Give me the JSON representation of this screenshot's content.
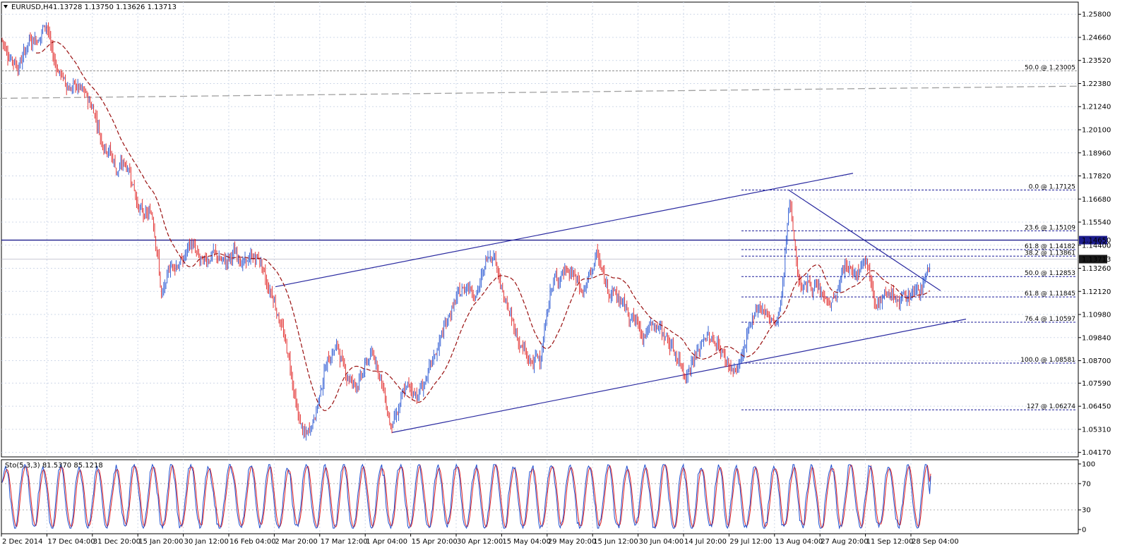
{
  "header": {
    "symbol": "EURUSD,H4",
    "ohlc": "1.13728 1.13750 1.13626 1.13713",
    "menu_icon": "triangle-down-icon"
  },
  "indicator": {
    "label": "Sto(5,3,3) 81.5370 85.1218",
    "levels": [
      "100",
      "70",
      "30",
      "0"
    ]
  },
  "colors": {
    "bull": "#1f4fd0",
    "bear": "#e02020",
    "ma": "#9a1010",
    "trend": "#2a2aa0",
    "fib": "#1c1c9a",
    "grid": "#cfd8e8",
    "current_price_box": "#1a1a1a",
    "resistance_box": "#1c1c8c",
    "long_ma": "#a0a0a0"
  },
  "chart_data": {
    "type": "candlestick",
    "symbol": "EURUSD",
    "timeframe": "H4",
    "y_ticks": [
      "1.25800",
      "1.24660",
      "1.23520",
      "1.22380",
      "1.21240",
      "1.20100",
      "1.18960",
      "1.17820",
      "1.16680",
      "1.15540",
      "1.14400",
      "1.13260",
      "1.12120",
      "1.10980",
      "1.09840",
      "1.08700",
      "1.07590",
      "1.06450",
      "1.05310",
      "1.04170"
    ],
    "ylim": [
      1.0395,
      1.264
    ],
    "x_ticks": [
      "2 Dec 2014",
      "17 Dec 04:00",
      "31 Dec 20:00",
      "15 Jan 20:00",
      "30 Jan 12:00",
      "16 Feb 04:00",
      "2 Mar 20:00",
      "17 Mar 12:00",
      "1 Apr 04:00",
      "15 Apr 20:00",
      "30 Apr 12:00",
      "15 May 04:00",
      "29 May 20:00",
      "15 Jun 12:00",
      "30 Jun 04:00",
      "14 Jul 20:00",
      "29 Jul 12:00",
      "13 Aug 04:00",
      "27 Aug 20:00",
      "11 Sep 12:00",
      "28 Sep 04:00"
    ],
    "price_path": [
      [
        0,
        1.246
      ],
      [
        15,
        1.236
      ],
      [
        25,
        1.232
      ],
      [
        40,
        1.245
      ],
      [
        55,
        1.247
      ],
      [
        65,
        1.255
      ],
      [
        72,
        1.238
      ],
      [
        85,
        1.228
      ],
      [
        95,
        1.222
      ],
      [
        110,
        1.222
      ],
      [
        125,
        1.215
      ],
      [
        135,
        1.208
      ],
      [
        142,
        1.196
      ],
      [
        155,
        1.19
      ],
      [
        165,
        1.18
      ],
      [
        175,
        1.185
      ],
      [
        185,
        1.178
      ],
      [
        195,
        1.162
      ],
      [
        205,
        1.158
      ],
      [
        215,
        1.16
      ],
      [
        222,
        1.14
      ],
      [
        228,
        1.115
      ],
      [
        240,
        1.135
      ],
      [
        255,
        1.135
      ],
      [
        270,
        1.145
      ],
      [
        285,
        1.135
      ],
      [
        300,
        1.14
      ],
      [
        315,
        1.135
      ],
      [
        330,
        1.14
      ],
      [
        345,
        1.135
      ],
      [
        358,
        1.138
      ],
      [
        368,
        1.137
      ],
      [
        375,
        1.125
      ],
      [
        385,
        1.12
      ],
      [
        400,
        1.1
      ],
      [
        410,
        1.085
      ],
      [
        420,
        1.06
      ],
      [
        432,
        1.048
      ],
      [
        445,
        1.06
      ],
      [
        460,
        1.085
      ],
      [
        475,
        1.095
      ],
      [
        490,
        1.08
      ],
      [
        505,
        1.075
      ],
      [
        520,
        1.088
      ],
      [
        530,
        1.09
      ],
      [
        540,
        1.075
      ],
      [
        552,
        1.055
      ],
      [
        560,
        1.06
      ],
      [
        575,
        1.075
      ],
      [
        590,
        1.07
      ],
      [
        605,
        1.08
      ],
      [
        620,
        1.095
      ],
      [
        635,
        1.11
      ],
      [
        650,
        1.12
      ],
      [
        660,
        1.125
      ],
      [
        675,
        1.12
      ],
      [
        690,
        1.14
      ],
      [
        700,
        1.14
      ],
      [
        710,
        1.12
      ],
      [
        720,
        1.11
      ],
      [
        735,
        1.095
      ],
      [
        750,
        1.085
      ],
      [
        765,
        1.09
      ],
      [
        780,
        1.125
      ],
      [
        795,
        1.13
      ],
      [
        810,
        1.13
      ],
      [
        825,
        1.12
      ],
      [
        845,
        1.14
      ],
      [
        855,
        1.125
      ],
      [
        870,
        1.12
      ],
      [
        880,
        1.115
      ],
      [
        895,
        1.108
      ],
      [
        910,
        1.1
      ],
      [
        925,
        1.105
      ],
      [
        940,
        1.1
      ],
      [
        955,
        1.09
      ],
      [
        970,
        1.08
      ],
      [
        985,
        1.09
      ],
      [
        1000,
        1.1
      ],
      [
        1015,
        1.095
      ],
      [
        1030,
        1.085
      ],
      [
        1040,
        1.08
      ],
      [
        1055,
        1.095
      ],
      [
        1070,
        1.115
      ],
      [
        1085,
        1.11
      ],
      [
        1100,
        1.105
      ],
      [
        1108,
        1.125
      ],
      [
        1112,
        1.15
      ],
      [
        1117,
        1.17
      ],
      [
        1122,
        1.15
      ],
      [
        1130,
        1.125
      ],
      [
        1145,
        1.125
      ],
      [
        1160,
        1.12
      ],
      [
        1175,
        1.115
      ],
      [
        1185,
        1.12
      ],
      [
        1195,
        1.135
      ],
      [
        1210,
        1.13
      ],
      [
        1225,
        1.14
      ],
      [
        1235,
        1.12
      ],
      [
        1245,
        1.115
      ],
      [
        1260,
        1.12
      ],
      [
        1275,
        1.115
      ],
      [
        1285,
        1.12
      ],
      [
        1295,
        1.12
      ],
      [
        1305,
        1.125
      ],
      [
        1318,
        1.137
      ]
    ],
    "moving_average_note": "dashed red moving average",
    "fibonacci_upper": [
      {
        "label": "0.0 @ 1.17125",
        "price": 1.17125
      },
      {
        "label": "23.6 @ 1.15109",
        "price": 1.15109
      },
      {
        "label": "61.8 @ 1.14182",
        "price": 1.14182
      },
      {
        "label": "38.2 @ 1.13861",
        "price": 1.13861
      },
      {
        "label": "50.0 @ 1.12853",
        "price": 1.12853
      },
      {
        "label": "61.8 @ 1.11845",
        "price": 1.11845
      },
      {
        "label": "76.4 @ 1.10597",
        "price": 1.10597
      },
      {
        "label": "100.0 @ 1.08581",
        "price": 1.08581
      },
      {
        "label": "127 @ 1.06274",
        "price": 1.06274
      }
    ],
    "fibonacci_top": {
      "label": "50.0 @ 1.23005",
      "price": 1.23005
    },
    "horizontal_level": {
      "price": 1.1465,
      "label": "1.14650"
    },
    "current_price": {
      "price": 1.13713,
      "label": "1.13713"
    },
    "channel_upper": [
      {
        "x": 390,
        "y": 1.1235
      },
      {
        "x": 1208,
        "y": 1.1795
      }
    ],
    "channel_lower": [
      {
        "x": 555,
        "y": 1.0515
      },
      {
        "x": 1368,
        "y": 1.1075
      }
    ],
    "downtrend_line": [
      {
        "x": 1117,
        "y": 1.1712
      },
      {
        "x": 1332,
        "y": 1.1215
      }
    ],
    "long_ma_dashed": [
      {
        "x": 0,
        "y": 1.2165
      },
      {
        "x": 1525,
        "y": 1.2225
      }
    ],
    "stochastic": {
      "k": 81.537,
      "d": 85.1218,
      "ylim": [
        0,
        100
      ],
      "levels": [
        0,
        30,
        70,
        100
      ]
    }
  }
}
